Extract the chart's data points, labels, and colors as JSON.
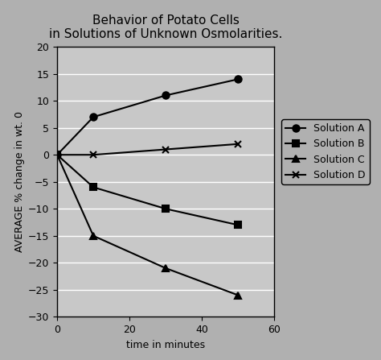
{
  "title": "Behavior of Potato Cells\nin Solutions of Unknown Osmolarities.",
  "xlabel": "time in minutes",
  "ylabel": "AVERAGE % change in wt. 0",
  "xlim": [
    0,
    60
  ],
  "ylim": [
    -30,
    20
  ],
  "yticks": [
    20,
    15,
    10,
    5,
    0,
    -5,
    -10,
    -15,
    -20,
    -25,
    -30
  ],
  "xticks": [
    0,
    20,
    40,
    60
  ],
  "series": [
    {
      "label": "Solution A",
      "x": [
        0,
        10,
        30,
        50
      ],
      "y": [
        0,
        7,
        11,
        14
      ],
      "marker": "o",
      "color": "#000000",
      "markersize": 6,
      "linewidth": 1.5,
      "filled": true
    },
    {
      "label": "Solution B",
      "x": [
        0,
        10,
        30,
        50
      ],
      "y": [
        0,
        -6,
        -10,
        -13
      ],
      "marker": "s",
      "color": "#000000",
      "markersize": 6,
      "linewidth": 1.5,
      "filled": true
    },
    {
      "label": "Solution C",
      "x": [
        0,
        10,
        30,
        50
      ],
      "y": [
        0,
        -15,
        -21,
        -26
      ],
      "marker": "^",
      "color": "#000000",
      "markersize": 6,
      "linewidth": 1.5,
      "filled": true
    },
    {
      "label": "Solution D",
      "x": [
        0,
        10,
        30,
        50
      ],
      "y": [
        0,
        0,
        1,
        2
      ],
      "marker": "x",
      "color": "#000000",
      "markersize": 6,
      "linewidth": 1.5,
      "filled": false
    }
  ],
  "fig_bg_color": "#b0b0b0",
  "plot_bg_color": "#c8c8c8",
  "grid_color": "#ffffff",
  "title_fontsize": 11,
  "axis_label_fontsize": 9,
  "tick_fontsize": 9,
  "legend_fontsize": 9
}
